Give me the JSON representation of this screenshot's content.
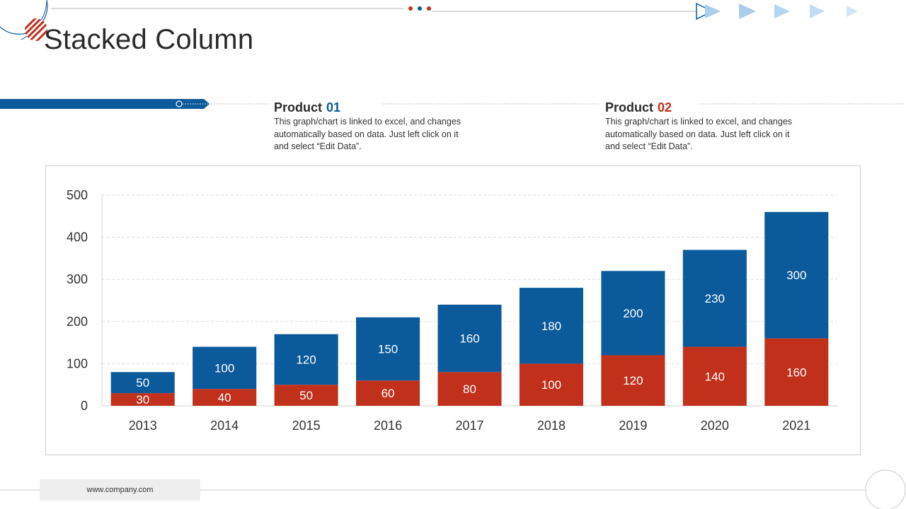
{
  "slide": {
    "title": "Stacked Column",
    "footer_url": "www.company.com"
  },
  "products": [
    {
      "label": "Product",
      "number": "01",
      "number_color": "#0a5a9c",
      "description_lines": [
        "This graph/chart is linked to excel, and changes",
        "automatically based on data. Just left click on it",
        "and select “Edit Data”."
      ]
    },
    {
      "label": "Product",
      "number": "02",
      "number_color": "#c0301b",
      "description_lines": [
        "This graph/chart is linked to excel, and changes",
        "automatically based on data. Just left click on it",
        "and select “Edit Data”."
      ]
    }
  ],
  "colors": {
    "blue": "#0a5a9c",
    "red": "#c0301b",
    "light_blue": "#a9cdeb"
  },
  "chart_data": {
    "type": "bar",
    "stacked": true,
    "title": "",
    "xlabel": "",
    "ylabel": "",
    "ylim": [
      0,
      500
    ],
    "yticks": [
      0,
      100,
      200,
      300,
      400,
      500
    ],
    "grid": true,
    "categories": [
      "2013",
      "2014",
      "2015",
      "2016",
      "2017",
      "2018",
      "2019",
      "2020",
      "2021"
    ],
    "series": [
      {
        "name": "Product 02",
        "color": "#c0301b",
        "values": [
          30,
          40,
          50,
          60,
          80,
          100,
          120,
          140,
          160
        ]
      },
      {
        "name": "Product 01",
        "color": "#0a5a9c",
        "values": [
          50,
          100,
          120,
          150,
          160,
          180,
          200,
          230,
          300
        ]
      }
    ]
  }
}
